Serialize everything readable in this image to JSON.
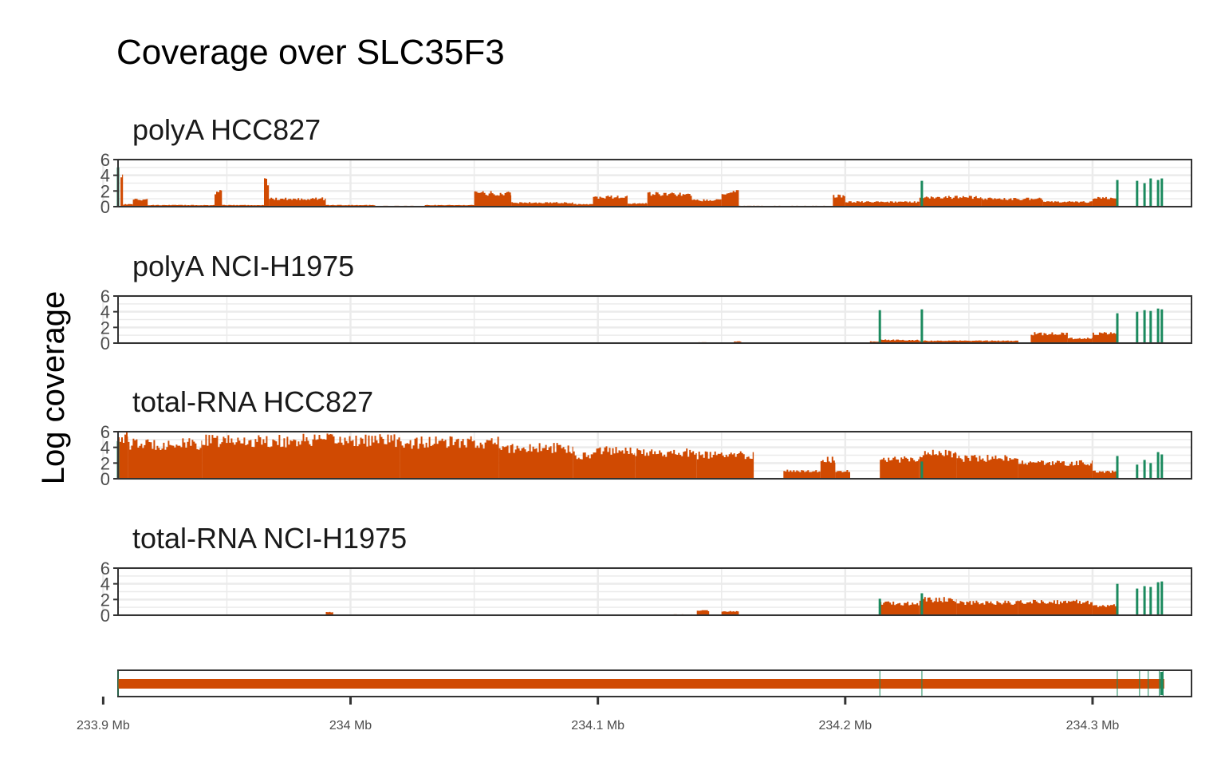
{
  "chart_data": {
    "type": "bar",
    "title": "Coverage over SLC35F3",
    "ylabel": "Log coverage",
    "xlabel": "",
    "xlim": [
      233.906,
      234.34
    ],
    "ylim": [
      0,
      6
    ],
    "y_ticks": [
      "0",
      "2",
      "4",
      "6"
    ],
    "x_ticks": [
      {
        "value": 233.9,
        "label": "233.9 Mb"
      },
      {
        "value": 234.0,
        "label": "234 Mb"
      },
      {
        "value": 234.1,
        "label": "234.1 Mb"
      },
      {
        "value": 234.2,
        "label": "234.2 Mb"
      },
      {
        "value": 234.3,
        "label": "234.3 Mb"
      }
    ],
    "colors": {
      "intron": "#D04A02",
      "exon": "#1B8A5E",
      "grid": "#EBEBEB",
      "frame": "#333333"
    },
    "gene_model": {
      "start": 233.906,
      "end": 234.329,
      "exon_boundaries": [
        233.906,
        234.214,
        234.231,
        234.31,
        234.319,
        234.3225,
        234.327,
        234.3285
      ]
    },
    "panels": [
      {
        "name": "polyA HCC827",
        "intron_segments": [
          {
            "start": 233.907,
            "end": 233.908,
            "y": 4.0
          },
          {
            "start": 233.908,
            "end": 233.912,
            "y": 0.3
          },
          {
            "start": 233.912,
            "end": 233.918,
            "y": 0.9
          },
          {
            "start": 233.918,
            "end": 233.945,
            "y": 0.2
          },
          {
            "start": 233.945,
            "end": 233.948,
            "y": 1.8
          },
          {
            "start": 233.948,
            "end": 233.965,
            "y": 0.2
          },
          {
            "start": 233.965,
            "end": 233.967,
            "y": 3.2
          },
          {
            "start": 233.967,
            "end": 233.99,
            "y": 1.0
          },
          {
            "start": 233.99,
            "end": 234.01,
            "y": 0.2
          },
          {
            "start": 234.01,
            "end": 234.03,
            "y": 0.1
          },
          {
            "start": 234.03,
            "end": 234.05,
            "y": 0.2
          },
          {
            "start": 234.05,
            "end": 234.065,
            "y": 1.7
          },
          {
            "start": 234.065,
            "end": 234.09,
            "y": 0.5
          },
          {
            "start": 234.09,
            "end": 234.098,
            "y": 0.3
          },
          {
            "start": 234.098,
            "end": 234.112,
            "y": 1.2
          },
          {
            "start": 234.112,
            "end": 234.12,
            "y": 0.4
          },
          {
            "start": 234.12,
            "end": 234.138,
            "y": 1.6
          },
          {
            "start": 234.138,
            "end": 234.15,
            "y": 0.8
          },
          {
            "start": 234.15,
            "end": 234.157,
            "y": 1.8
          },
          {
            "start": 234.157,
            "end": 234.195,
            "y": 0.1
          },
          {
            "start": 234.195,
            "end": 234.2,
            "y": 1.4
          },
          {
            "start": 234.2,
            "end": 234.23,
            "y": 0.6
          },
          {
            "start": 234.23,
            "end": 234.255,
            "y": 1.2
          },
          {
            "start": 234.255,
            "end": 234.28,
            "y": 1.0
          },
          {
            "start": 234.28,
            "end": 234.3,
            "y": 0.6
          },
          {
            "start": 234.3,
            "end": 234.31,
            "y": 1.1
          }
        ],
        "exon_peaks": [
          {
            "x": 233.906,
            "y": 5.0
          },
          {
            "x": 234.231,
            "y": 3.3
          },
          {
            "x": 234.31,
            "y": 3.4
          },
          {
            "x": 234.318,
            "y": 3.3
          },
          {
            "x": 234.321,
            "y": 3.0
          },
          {
            "x": 234.3235,
            "y": 3.6
          },
          {
            "x": 234.3265,
            "y": 3.4
          },
          {
            "x": 234.328,
            "y": 3.6
          }
        ]
      },
      {
        "name": "polyA NCI-H1975",
        "intron_segments": [
          {
            "start": 234.14,
            "end": 234.145,
            "y": 0.1
          },
          {
            "start": 234.155,
            "end": 234.158,
            "y": 0.2
          },
          {
            "start": 234.21,
            "end": 234.214,
            "y": 0.2
          },
          {
            "start": 234.214,
            "end": 234.23,
            "y": 0.4
          },
          {
            "start": 234.23,
            "end": 234.27,
            "y": 0.3
          },
          {
            "start": 234.275,
            "end": 234.29,
            "y": 1.2
          },
          {
            "start": 234.29,
            "end": 234.3,
            "y": 0.6
          },
          {
            "start": 234.3,
            "end": 234.31,
            "y": 1.2
          }
        ],
        "exon_peaks": [
          {
            "x": 234.214,
            "y": 4.2
          },
          {
            "x": 234.231,
            "y": 4.3
          },
          {
            "x": 234.31,
            "y": 3.8
          },
          {
            "x": 234.318,
            "y": 4.0
          },
          {
            "x": 234.321,
            "y": 4.2
          },
          {
            "x": 234.3235,
            "y": 4.1
          },
          {
            "x": 234.3265,
            "y": 4.4
          },
          {
            "x": 234.328,
            "y": 4.3
          }
        ]
      },
      {
        "name": "total-RNA HCC827",
        "intron_segments": [
          {
            "start": 233.906,
            "end": 233.91,
            "y": 5.4
          },
          {
            "start": 233.91,
            "end": 233.94,
            "y": 4.4
          },
          {
            "start": 233.94,
            "end": 233.98,
            "y": 4.8
          },
          {
            "start": 233.98,
            "end": 234.02,
            "y": 4.9
          },
          {
            "start": 234.02,
            "end": 234.06,
            "y": 4.6
          },
          {
            "start": 234.06,
            "end": 234.09,
            "y": 3.9
          },
          {
            "start": 234.09,
            "end": 234.098,
            "y": 3.0
          },
          {
            "start": 234.098,
            "end": 234.115,
            "y": 3.7
          },
          {
            "start": 234.115,
            "end": 234.14,
            "y": 3.3
          },
          {
            "start": 234.14,
            "end": 234.163,
            "y": 3.0
          },
          {
            "start": 234.175,
            "end": 234.19,
            "y": 1.0
          },
          {
            "start": 234.19,
            "end": 234.196,
            "y": 2.4
          },
          {
            "start": 234.196,
            "end": 234.202,
            "y": 1.0
          },
          {
            "start": 234.214,
            "end": 234.23,
            "y": 2.5
          },
          {
            "start": 234.23,
            "end": 234.245,
            "y": 3.2
          },
          {
            "start": 234.245,
            "end": 234.27,
            "y": 2.6
          },
          {
            "start": 234.27,
            "end": 234.3,
            "y": 2.0
          },
          {
            "start": 234.3,
            "end": 234.31,
            "y": 0.9
          }
        ],
        "exon_peaks": [
          {
            "x": 233.906,
            "y": 4.8
          },
          {
            "x": 234.231,
            "y": 2.2
          },
          {
            "x": 234.31,
            "y": 2.9
          },
          {
            "x": 234.318,
            "y": 1.8
          },
          {
            "x": 234.321,
            "y": 2.4
          },
          {
            "x": 234.3235,
            "y": 2.0
          },
          {
            "x": 234.3265,
            "y": 3.4
          },
          {
            "x": 234.328,
            "y": 3.1
          }
        ]
      },
      {
        "name": "total-RNA NCI-H1975",
        "intron_segments": [
          {
            "start": 233.99,
            "end": 233.993,
            "y": 0.4
          },
          {
            "start": 234.13,
            "end": 234.138,
            "y": 0.1
          },
          {
            "start": 234.14,
            "end": 234.145,
            "y": 0.6
          },
          {
            "start": 234.15,
            "end": 234.157,
            "y": 0.5
          },
          {
            "start": 234.214,
            "end": 234.23,
            "y": 1.5
          },
          {
            "start": 234.23,
            "end": 234.245,
            "y": 2.0
          },
          {
            "start": 234.245,
            "end": 234.27,
            "y": 1.6
          },
          {
            "start": 234.27,
            "end": 234.3,
            "y": 1.7
          },
          {
            "start": 234.3,
            "end": 234.31,
            "y": 1.2
          }
        ],
        "exon_peaks": [
          {
            "x": 234.214,
            "y": 2.1
          },
          {
            "x": 234.231,
            "y": 2.8
          },
          {
            "x": 234.31,
            "y": 4.0
          },
          {
            "x": 234.318,
            "y": 3.4
          },
          {
            "x": 234.321,
            "y": 3.7
          },
          {
            "x": 234.3235,
            "y": 3.6
          },
          {
            "x": 234.3265,
            "y": 4.2
          },
          {
            "x": 234.328,
            "y": 4.3
          }
        ]
      }
    ]
  }
}
